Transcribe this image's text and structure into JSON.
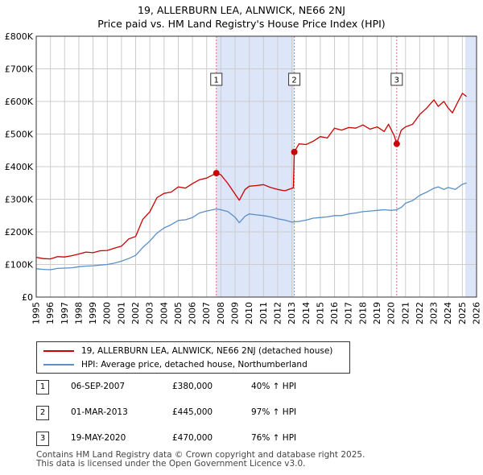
{
  "title": "19, ALLERBURN LEA, ALNWICK, NE66 2NJ",
  "subtitle": "Price paid vs. HM Land Registry's House Price Index (HPI)",
  "colors": {
    "property": "#cc0000",
    "hpi": "#5b8fc7",
    "shade": "#dde5f8",
    "grid": "#cccccc",
    "marker_line": "#e07070"
  },
  "legend": {
    "property_label": "19, ALLERBURN LEA, ALNWICK, NE66 2NJ (detached house)",
    "hpi_label": "HPI: Average price, detached house, Northumberland"
  },
  "sales": [
    {
      "id": "1",
      "date": "06-SEP-2007",
      "price": "£380,000",
      "hpi_change": "40% ↑ HPI"
    },
    {
      "id": "2",
      "date": "01-MAR-2013",
      "price": "£445,000",
      "hpi_change": "97% ↑ HPI"
    },
    {
      "id": "3",
      "date": "19-MAY-2020",
      "price": "£470,000",
      "hpi_change": "76% ↑ HPI"
    }
  ],
  "footer": {
    "line1": "Contains HM Land Registry data © Crown copyright and database right 2025.",
    "line2": "This data is licensed under the Open Government Licence v3.0."
  },
  "chart_data": {
    "type": "line",
    "title": "19, ALLERBURN LEA, ALNWICK, NE66 2NJ",
    "subtitle": "Price paid vs. HM Land Registry's House Price Index (HPI)",
    "xlabel": "",
    "ylabel": "",
    "xlim": [
      1995,
      2026
    ],
    "ylim": [
      0,
      800000
    ],
    "x_ticks": [
      "1995",
      "1996",
      "1997",
      "1998",
      "1999",
      "2000",
      "2001",
      "2002",
      "2003",
      "2004",
      "2005",
      "2006",
      "2007",
      "2008",
      "2009",
      "2010",
      "2011",
      "2012",
      "2013",
      "2014",
      "2015",
      "2016",
      "2017",
      "2018",
      "2019",
      "2020",
      "2021",
      "2022",
      "2023",
      "2024",
      "2025",
      "2026"
    ],
    "y_ticks": [
      {
        "value": 0,
        "label": "£0"
      },
      {
        "value": 100000,
        "label": "£100K"
      },
      {
        "value": 200000,
        "label": "£200K"
      },
      {
        "value": 300000,
        "label": "£300K"
      },
      {
        "value": 400000,
        "label": "£400K"
      },
      {
        "value": 500000,
        "label": "£500K"
      },
      {
        "value": 600000,
        "label": "£600K"
      },
      {
        "value": 700000,
        "label": "£700K"
      },
      {
        "value": 800000,
        "label": "£800K"
      }
    ],
    "grid": true,
    "shaded_ranges": [
      [
        2007.68,
        2013.17
      ],
      [
        2025.2,
        2026
      ]
    ],
    "sale_markers": [
      {
        "label": "1",
        "x": 2007.68,
        "y": 380000
      },
      {
        "label": "2",
        "x": 2013.17,
        "y": 445000
      },
      {
        "label": "3",
        "x": 2020.38,
        "y": 470000
      }
    ],
    "series": [
      {
        "name": "19, ALLERBURN LEA, ALNWICK, NE66 2NJ (detached house)",
        "color": "#cc0000",
        "x": [
          1995,
          1995.5,
          1996,
          1996.5,
          1997,
          1997.5,
          1998,
          1998.5,
          1999,
          1999.5,
          2000,
          2000.5,
          2001,
          2001.5,
          2002,
          2002.5,
          2003,
          2003.5,
          2004,
          2004.5,
          2005,
          2005.5,
          2006,
          2006.5,
          2007,
          2007.68,
          2008,
          2008.5,
          2009,
          2009.3,
          2009.7,
          2010,
          2010.5,
          2011,
          2011.5,
          2012,
          2012.5,
          2013.1,
          2013.17,
          2013.5,
          2014,
          2014.5,
          2015,
          2015.5,
          2016,
          2016.5,
          2017,
          2017.5,
          2018,
          2018.5,
          2019,
          2019.5,
          2019.8,
          2020.2,
          2020.38,
          2020.7,
          2021,
          2021.5,
          2022,
          2022.5,
          2023,
          2023.3,
          2023.7,
          2024,
          2024.3,
          2024.7,
          2025,
          2025.3
        ],
        "y": [
          122000,
          118000,
          117000,
          124000,
          123000,
          127000,
          132000,
          138000,
          136000,
          142000,
          143000,
          150000,
          156000,
          178000,
          186000,
          238000,
          262000,
          305000,
          318000,
          322000,
          338000,
          334000,
          348000,
          360000,
          365000,
          380000,
          375000,
          348000,
          316000,
          297000,
          330000,
          340000,
          342000,
          345000,
          336000,
          330000,
          326000,
          335000,
          445000,
          470000,
          468000,
          478000,
          492000,
          488000,
          518000,
          512000,
          520000,
          518000,
          528000,
          515000,
          522000,
          508000,
          530000,
          495000,
          470000,
          512000,
          522000,
          530000,
          560000,
          580000,
          605000,
          585000,
          600000,
          580000,
          565000,
          600000,
          625000,
          615000
        ]
      },
      {
        "name": "HPI: Average price, detached house, Northumberland",
        "color": "#5b8fc7",
        "x": [
          1995,
          1995.5,
          1996,
          1996.5,
          1997,
          1997.5,
          1998,
          1998.5,
          1999,
          1999.5,
          2000,
          2000.5,
          2001,
          2001.5,
          2002,
          2002.5,
          2003,
          2003.5,
          2004,
          2004.5,
          2005,
          2005.5,
          2006,
          2006.5,
          2007,
          2007.68,
          2008,
          2008.5,
          2009,
          2009.3,
          2009.7,
          2010,
          2010.5,
          2011,
          2011.5,
          2012,
          2012.5,
          2013,
          2013.5,
          2014,
          2014.5,
          2015,
          2015.5,
          2016,
          2016.5,
          2017,
          2017.5,
          2018,
          2018.5,
          2019,
          2019.5,
          2020,
          2020.38,
          2020.7,
          2021,
          2021.5,
          2022,
          2022.5,
          2023,
          2023.3,
          2023.7,
          2024,
          2024.5,
          2025,
          2025.3
        ],
        "y": [
          87000,
          85000,
          84000,
          88000,
          89000,
          90000,
          93000,
          95000,
          96000,
          98000,
          100000,
          104000,
          110000,
          118000,
          128000,
          152000,
          172000,
          196000,
          212000,
          222000,
          235000,
          237000,
          244000,
          258000,
          264000,
          270000,
          268000,
          262000,
          245000,
          228000,
          248000,
          255000,
          252000,
          250000,
          246000,
          240000,
          236000,
          230000,
          232000,
          236000,
          242000,
          244000,
          246000,
          250000,
          250000,
          255000,
          258000,
          262000,
          264000,
          266000,
          268000,
          266000,
          268000,
          275000,
          288000,
          296000,
          312000,
          322000,
          334000,
          338000,
          330000,
          336000,
          330000,
          346000,
          350000
        ]
      }
    ]
  }
}
